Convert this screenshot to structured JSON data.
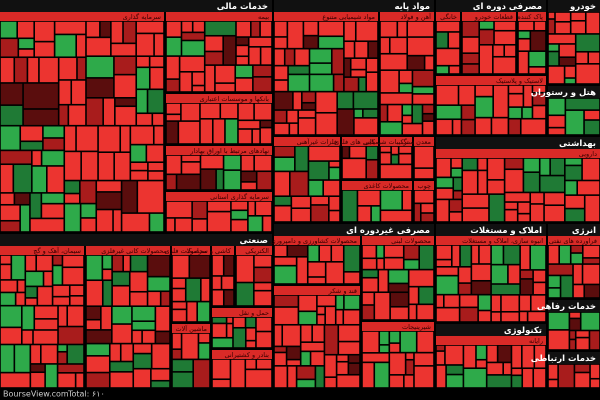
{
  "sectors": [
    {
      "title": "خدمات مالی",
      "subs": [
        {
          "label": "سرمایه گذاری"
        },
        {
          "label": "بیمه"
        },
        {
          "label": "بانکها و موسسات اعتباری"
        },
        {
          "label": "نهادهای مرتبط با اوراق بهادار"
        },
        {
          "label": "سرمایه گذاری استانی"
        }
      ]
    },
    {
      "title": "مواد پایه",
      "subs": [
        {
          "label": "مواد شیمیایی متنوع"
        },
        {
          "label": "آهن و فولاد"
        },
        {
          "label": "فلزات غیرآهنی"
        },
        {
          "label": "کانی های فلزی"
        },
        {
          "label": "ترکیبات شیمیایی"
        },
        {
          "label": "معدن سنگ"
        },
        {
          "label": "محصولات کاغذی"
        },
        {
          "label": "چوب"
        }
      ]
    },
    {
      "title": "مصرفی دوره ای",
      "subs": [
        {
          "label": "قطعات خودرو"
        },
        {
          "label": "پاک کننده"
        },
        {
          "label": "خانگی"
        },
        {
          "label": "لاستیک و پلاستیک"
        }
      ]
    },
    {
      "title": "خودرو",
      "subs": []
    },
    {
      "title": "هتل و رستوران",
      "subs": []
    },
    {
      "title": "بهداشتی",
      "subs": [
        {
          "label": "دارویی"
        }
      ]
    },
    {
      "title": "صنعتی",
      "subs": [
        {
          "label": "سیمان، آهک و گچ"
        },
        {
          "label": "محصولات کانی غیرفلزی"
        },
        {
          "label": "محصولات فلزی"
        },
        {
          "label": "کاشی و سرامیک"
        },
        {
          "label": "الکتریکی"
        },
        {
          "label": "ماشین آلات"
        },
        {
          "label": "حمل و نقل"
        },
        {
          "label": "بنادر و کشتیرانی"
        }
      ]
    },
    {
      "title": "مصرفی غیردوره ای",
      "subs": [
        {
          "label": "محصولات کشاورزی و دامپروری"
        },
        {
          "label": "محصولات لبنی"
        },
        {
          "label": "قند و شکر"
        },
        {
          "label": "شیرینیجات"
        }
      ]
    },
    {
      "title": "املاک و مستغلات",
      "subs": [
        {
          "label": "انبوه سازی، املاک و مستغلات"
        }
      ]
    },
    {
      "title": "انرژی",
      "subs": [
        {
          "label": "فراورده های نفتی"
        }
      ]
    },
    {
      "title": "خدمات رفاهی",
      "subs": []
    },
    {
      "title": "تکنولوژی",
      "subs": [
        {
          "label": "رایانه"
        }
      ]
    },
    {
      "title": "خدمات ارتباطی",
      "subs": []
    }
  ],
  "footer": {
    "site": "BourseView.com",
    "total": "Total: ۶۱۰"
  }
}
